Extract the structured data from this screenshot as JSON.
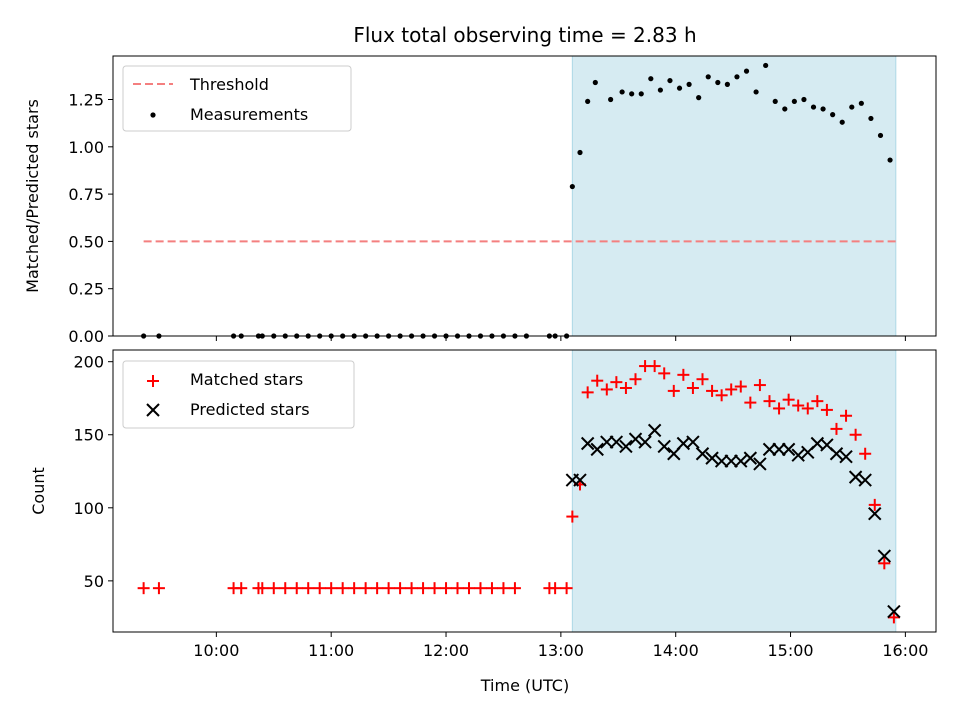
{
  "title": "Flux total observing time = 2.83 h",
  "xlabel": "Time (UTC)",
  "x_ticks": [
    "10:00",
    "11:00",
    "12:00",
    "13:00",
    "14:00",
    "15:00",
    "16:00"
  ],
  "colors": {
    "threshold": "#f47f7f",
    "measurements": "#000000",
    "matched": "#ff0000",
    "predicted": "#000000",
    "shade": "#add8e6"
  },
  "chart_data": [
    {
      "type": "scatter",
      "ylabel": "Matched/Predicted stars",
      "xlim": [
        "09:06",
        "16:16"
      ],
      "ylim": [
        0,
        1.48
      ],
      "y_ticks": [
        "0.00",
        "0.25",
        "0.50",
        "0.75",
        "1.00",
        "1.25"
      ],
      "shaded_span": [
        "13:06",
        "15:55"
      ],
      "legend": {
        "position": "upper-left",
        "entries": [
          "Threshold",
          "Measurements"
        ]
      },
      "threshold": {
        "name": "Threshold",
        "x_start": "09:22",
        "x_end": "15:55",
        "y": 0.5
      },
      "series": [
        {
          "name": "Measurements",
          "x": [
            "09:22",
            "09:30",
            "10:09",
            "10:13",
            "10:22",
            "10:24",
            "10:30",
            "10:36",
            "10:42",
            "10:48",
            "10:54",
            "11:00",
            "11:06",
            "11:12",
            "11:18",
            "11:24",
            "11:30",
            "11:36",
            "11:42",
            "11:48",
            "11:54",
            "12:00",
            "12:06",
            "12:12",
            "12:18",
            "12:24",
            "12:30",
            "12:36",
            "12:42",
            "12:54",
            "12:57",
            "13:03",
            "13:06",
            "13:10",
            "13:14",
            "13:18",
            "13:26",
            "13:32",
            "13:37",
            "13:42",
            "13:47",
            "13:52",
            "13:57",
            "14:02",
            "14:07",
            "14:12",
            "14:17",
            "14:22",
            "14:27",
            "14:32",
            "14:37",
            "14:42",
            "14:47",
            "14:52",
            "14:57",
            "15:02",
            "15:07",
            "15:12",
            "15:17",
            "15:22",
            "15:27",
            "15:32",
            "15:37",
            "15:42",
            "15:47",
            "15:52"
          ],
          "y": [
            0,
            0,
            0,
            0,
            0,
            0,
            0,
            0,
            0,
            0,
            0,
            0,
            0,
            0,
            0,
            0,
            0,
            0,
            0,
            0,
            0,
            0,
            0,
            0,
            0,
            0,
            0,
            0,
            0,
            0,
            0,
            0,
            0.79,
            0.97,
            1.24,
            1.34,
            1.25,
            1.29,
            1.28,
            1.28,
            1.36,
            1.3,
            1.35,
            1.31,
            1.33,
            1.26,
            1.37,
            1.34,
            1.33,
            1.37,
            1.4,
            1.29,
            1.43,
            1.24,
            1.2,
            1.24,
            1.25,
            1.21,
            1.2,
            1.17,
            1.13,
            1.21,
            1.23,
            1.15,
            1.06,
            0.93
          ]
        }
      ]
    },
    {
      "type": "scatter",
      "ylabel": "Count",
      "xlim": [
        "09:06",
        "16:16"
      ],
      "ylim": [
        15,
        208
      ],
      "y_ticks": [
        "50",
        "100",
        "150",
        "200"
      ],
      "shaded_span": [
        "13:06",
        "15:55"
      ],
      "legend": {
        "position": "upper-left",
        "entries": [
          "Matched stars",
          "Predicted stars"
        ]
      },
      "series": [
        {
          "name": "Matched stars",
          "x": [
            "09:22",
            "09:30",
            "10:09",
            "10:13",
            "10:22",
            "10:24",
            "10:30",
            "10:36",
            "10:42",
            "10:48",
            "10:54",
            "11:00",
            "11:06",
            "11:12",
            "11:18",
            "11:24",
            "11:30",
            "11:36",
            "11:42",
            "11:48",
            "11:54",
            "12:00",
            "12:06",
            "12:12",
            "12:18",
            "12:24",
            "12:30",
            "12:36",
            "12:54",
            "12:57",
            "13:03",
            "13:06",
            "13:10",
            "13:14",
            "13:19",
            "13:24",
            "13:29",
            "13:34",
            "13:39",
            "13:44",
            "13:49",
            "13:54",
            "13:59",
            "14:04",
            "14:09",
            "14:14",
            "14:19",
            "14:24",
            "14:29",
            "14:34",
            "14:39",
            "14:44",
            "14:49",
            "14:54",
            "14:59",
            "15:04",
            "15:09",
            "15:14",
            "15:19",
            "15:24",
            "15:29",
            "15:34",
            "15:39",
            "15:44",
            "15:49",
            "15:54"
          ],
          "y": [
            45,
            45,
            45,
            45,
            45,
            45,
            45,
            45,
            45,
            45,
            45,
            45,
            45,
            45,
            45,
            45,
            45,
            45,
            45,
            45,
            45,
            45,
            45,
            45,
            45,
            45,
            45,
            45,
            45,
            45,
            45,
            94,
            116,
            179,
            187,
            181,
            186,
            182,
            188,
            197,
            197,
            192,
            180,
            191,
            182,
            188,
            180,
            177,
            181,
            183,
            172,
            184,
            173,
            168,
            174,
            170,
            168,
            173,
            167,
            154,
            163,
            150,
            137,
            102,
            62,
            25
          ]
        },
        {
          "name": "Predicted stars",
          "x": [
            "13:06",
            "13:10",
            "13:14",
            "13:19",
            "13:24",
            "13:29",
            "13:34",
            "13:39",
            "13:44",
            "13:49",
            "13:54",
            "13:59",
            "14:04",
            "14:09",
            "14:14",
            "14:19",
            "14:24",
            "14:29",
            "14:34",
            "14:39",
            "14:44",
            "14:49",
            "14:54",
            "14:59",
            "15:04",
            "15:09",
            "15:14",
            "15:19",
            "15:24",
            "15:29",
            "15:34",
            "15:39",
            "15:44",
            "15:49",
            "15:54"
          ],
          "y": [
            119,
            119,
            144,
            140,
            145,
            145,
            142,
            147,
            145,
            153,
            142,
            137,
            144,
            145,
            137,
            134,
            132,
            132,
            132,
            134,
            130,
            140,
            140,
            140,
            136,
            138,
            144,
            143,
            137,
            135,
            121,
            119,
            96,
            67,
            29
          ]
        }
      ]
    }
  ]
}
